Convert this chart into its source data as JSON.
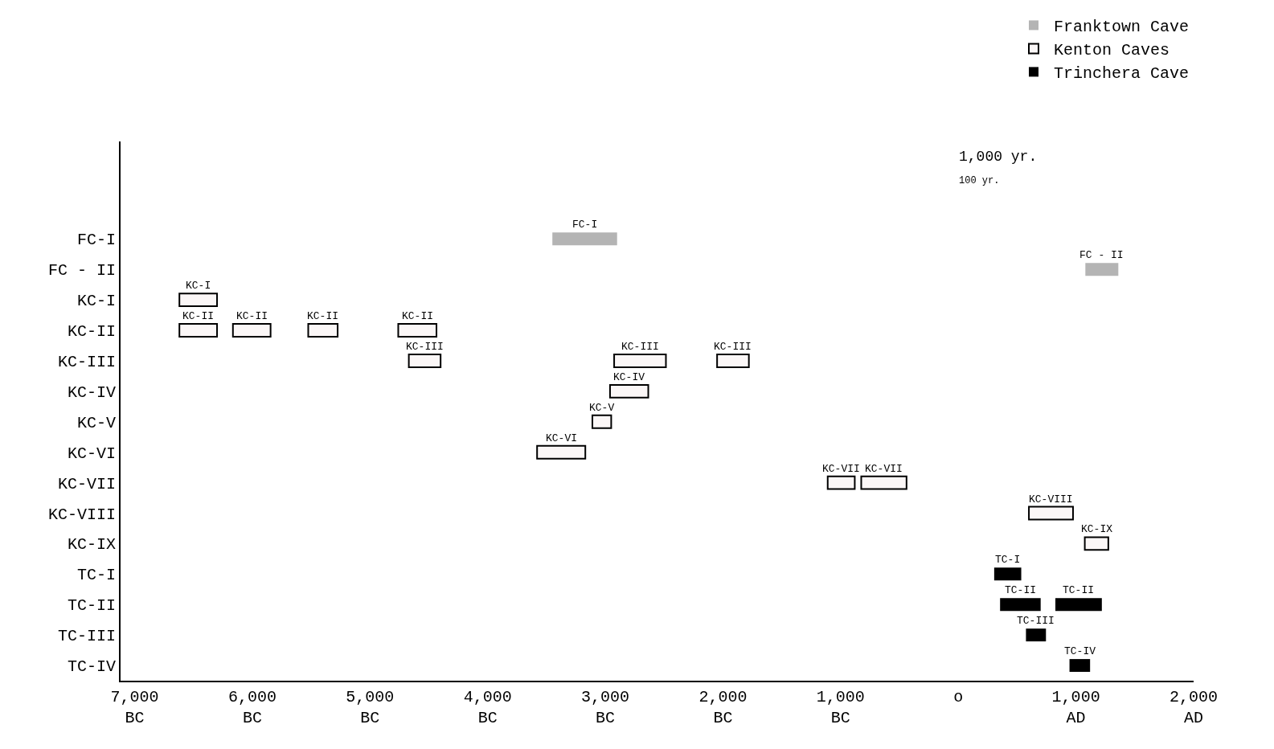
{
  "chart_data": {
    "type": "bar",
    "orientation": "horizontal",
    "categories": [
      "FC-I",
      "FC - II",
      "KC-I",
      "KC-II",
      "KC-III",
      "KC-IV",
      "KC-V",
      "KC-VI",
      "KC-VII",
      "KC-VIII",
      "KC-IX",
      "TC-I",
      "TC-II",
      "TC-III",
      "TC-IV"
    ],
    "xlim": [
      -7120,
      2000
    ],
    "xticks": [
      {
        "value": -7000,
        "label": "7,000\nBC"
      },
      {
        "value": -6000,
        "label": "6,000\nBC"
      },
      {
        "value": -5000,
        "label": "5,000\nBC"
      },
      {
        "value": -4000,
        "label": "4,000\nBC"
      },
      {
        "value": -3000,
        "label": "3,000\nBC"
      },
      {
        "value": -2000,
        "label": "2,000\nBC"
      },
      {
        "value": -1000,
        "label": "1,000\nBC"
      },
      {
        "value": 0,
        "label": "o"
      },
      {
        "value": 1000,
        "label": "1,000\nAD"
      },
      {
        "value": 2000,
        "label": "2,000\nAD"
      }
    ],
    "series": [
      {
        "name": "Franktown Cave",
        "color": "#b4b4b4",
        "base": [
          -3450,
          1080,
          null,
          null,
          null,
          null,
          null,
          null,
          null,
          null,
          null,
          null,
          null,
          null,
          null
        ],
        "values": [
          550,
          280,
          null,
          null,
          null,
          null,
          null,
          null,
          null,
          null,
          null,
          null,
          null,
          null,
          null
        ],
        "value_labels": [
          "FC-I",
          "FC - II",
          null,
          null,
          null,
          null,
          null,
          null,
          null,
          null,
          null,
          null,
          null,
          null,
          null
        ]
      },
      {
        "name": "Kenton Caves",
        "color": "#fbf7f7",
        "base": [
          null,
          null,
          -6620,
          -6620,
          -4670,
          -2960,
          -3110,
          -3580,
          -1110,
          600,
          1075,
          null,
          null,
          null,
          null
        ],
        "values": [
          null,
          null,
          320,
          320,
          270,
          325,
          160,
          410,
          230,
          375,
          200,
          null,
          null,
          null,
          null
        ],
        "value_labels": [
          null,
          null,
          "KC-I",
          "KC-II",
          "KC-III",
          "KC-IV",
          "KC-V",
          "KC-VI",
          "KC-VII",
          "KC-VIII",
          "KC-IX",
          null,
          null,
          null,
          null
        ]
      },
      {
        "name": "Trinchera Cave",
        "color": "#000000",
        "base": [
          null,
          null,
          null,
          null,
          null,
          null,
          null,
          null,
          null,
          null,
          null,
          305,
          355,
          575,
          945
        ],
        "values": [
          null,
          null,
          null,
          null,
          null,
          null,
          null,
          null,
          null,
          null,
          null,
          230,
          345,
          170,
          175
        ],
        "value_labels": [
          null,
          null,
          null,
          null,
          null,
          null,
          null,
          null,
          null,
          null,
          null,
          "TC-I",
          "TC-II",
          "TC-III",
          "TC-IV"
        ]
      },
      {
        "color": "#fbf7f7",
        "base": [
          null,
          null,
          null,
          -6165,
          -2925,
          null,
          null,
          null,
          -825,
          null,
          null,
          null,
          null,
          null,
          null
        ],
        "values": [
          null,
          null,
          null,
          320,
          440,
          null,
          null,
          null,
          385,
          null,
          null,
          null,
          null,
          null,
          null
        ],
        "value_labels": [
          null,
          null,
          null,
          "KC-II",
          "KC-III",
          null,
          null,
          null,
          "KC-VII",
          null,
          null,
          null,
          null,
          null,
          null
        ]
      },
      {
        "color": "#fbf7f7",
        "base": [
          null,
          null,
          null,
          -5525,
          -2050,
          null,
          null,
          null,
          null,
          null,
          null,
          null,
          null,
          null,
          null
        ],
        "values": [
          null,
          null,
          null,
          250,
          270,
          null,
          null,
          null,
          null,
          null,
          null,
          null,
          null,
          null,
          null
        ],
        "value_labels": [
          null,
          null,
          null,
          "KC-II",
          "KC-III",
          null,
          null,
          null,
          null,
          null,
          null,
          null,
          null,
          null,
          null
        ]
      },
      {
        "color": "#fbf7f7",
        "base": [
          null,
          null,
          null,
          -4760,
          null,
          null,
          null,
          null,
          null,
          null,
          null,
          null,
          null,
          null,
          null
        ],
        "values": [
          null,
          null,
          null,
          325,
          null,
          null,
          null,
          null,
          null,
          null,
          null,
          null,
          null,
          null,
          null
        ],
        "value_labels": [
          null,
          null,
          null,
          "KC-II",
          null,
          null,
          null,
          null,
          null,
          null,
          null,
          null,
          null,
          null,
          null
        ]
      },
      {
        "color": "#000000",
        "base": [
          null,
          null,
          null,
          null,
          null,
          null,
          null,
          null,
          null,
          null,
          null,
          null,
          825,
          null,
          null
        ],
        "values": [
          null,
          null,
          null,
          null,
          null,
          null,
          null,
          null,
          null,
          null,
          null,
          null,
          395,
          null,
          null
        ],
        "value_labels": [
          null,
          null,
          null,
          null,
          null,
          null,
          null,
          null,
          null,
          null,
          null,
          null,
          "TC-II",
          null,
          null
        ]
      }
    ],
    "annotations": [
      "1,000 yr.",
      "100 yr."
    ],
    "legend": "top right"
  }
}
